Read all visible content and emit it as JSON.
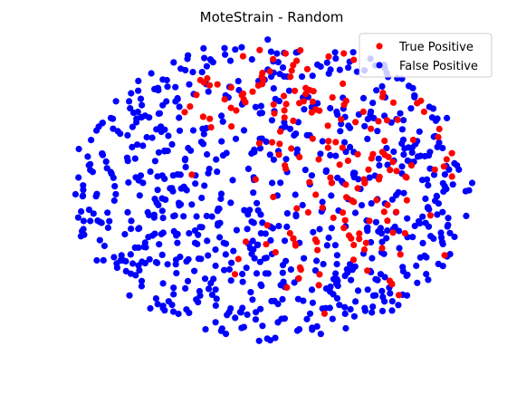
{
  "chart_data": {
    "type": "scatter",
    "title": "MoteStrain - Random",
    "xlabel": "",
    "ylabel": "",
    "axes_visible": false,
    "grid": false,
    "legend_placement": "top-right",
    "xlim": [
      -1.0,
      1.0
    ],
    "ylim": [
      -1.0,
      1.0
    ],
    "random_seed": 7,
    "point_counts": {
      "true_positive": 185,
      "false_positive": 780
    },
    "series": [
      {
        "name": "True Positive",
        "key": "true_positive",
        "color": "#ff0000"
      },
      {
        "name": "False Positive",
        "key": "false_positive",
        "color": "#0000ff"
      }
    ]
  }
}
